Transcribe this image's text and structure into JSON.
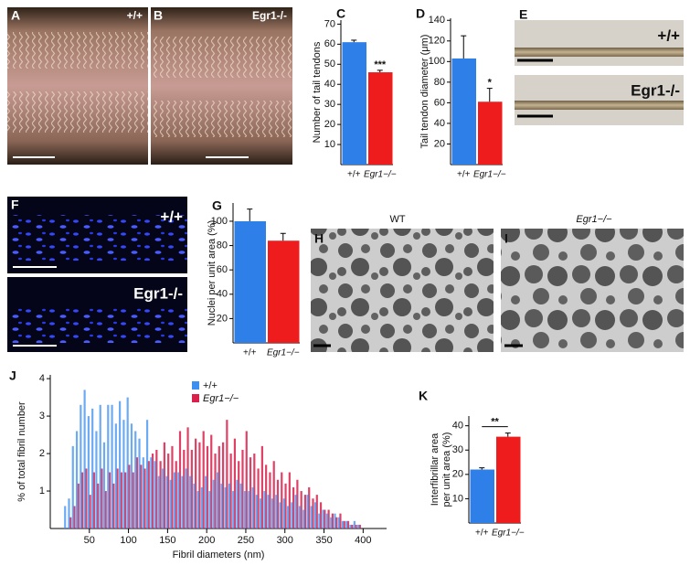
{
  "figure": {
    "images": [
      {
        "panel": "A",
        "label": "+/+"
      },
      {
        "panel": "B",
        "label": "Egr1-/-"
      },
      {
        "panel": "E",
        "labels": [
          "+/+",
          "Egr1-/-"
        ]
      },
      {
        "panel": "F",
        "labels": [
          "+/+",
          "Egr1-/-"
        ]
      },
      {
        "panel": "H",
        "label": "WT"
      },
      {
        "panel": "I",
        "label": "Egr1−/−"
      }
    ]
  },
  "chart_data": [
    {
      "panel": "C",
      "type": "bar",
      "ylabel": "Number of tail tendons",
      "categories": [
        "+/+",
        "Egr1−/−"
      ],
      "values": [
        61,
        46
      ],
      "errors": [
        1,
        1
      ],
      "colors": [
        "#2f7fe8",
        "#ee1c1c"
      ],
      "ylim": [
        0,
        72
      ],
      "yticks": [
        10,
        20,
        30,
        40,
        50,
        60,
        70
      ],
      "annotation": "***"
    },
    {
      "panel": "D",
      "type": "bar",
      "ylabel": "Tail tendon diameter (μm)",
      "categories": [
        "+/+",
        "Egr1−/−"
      ],
      "values": [
        103,
        61
      ],
      "errors": [
        22,
        13
      ],
      "colors": [
        "#2f7fe8",
        "#ee1c1c"
      ],
      "ylim": [
        0,
        142
      ],
      "yticks": [
        20,
        40,
        60,
        80,
        100,
        120,
        140
      ],
      "annotation": "*"
    },
    {
      "panel": "G",
      "type": "bar",
      "ylabel": "Nuclei per unit area (%)",
      "categories": [
        "+/+",
        "Egr1−/−"
      ],
      "values": [
        100,
        84
      ],
      "errors": [
        10,
        6
      ],
      "colors": [
        "#2f7fe8",
        "#ee1c1c"
      ],
      "ylim": [
        0,
        115
      ],
      "yticks": [
        20,
        40,
        60,
        80,
        100
      ]
    },
    {
      "panel": "J",
      "type": "bar",
      "ylabel": "% of total fibril number",
      "xlabel": "Fibril diameters (nm)",
      "x": [
        20,
        25,
        30,
        35,
        40,
        45,
        50,
        55,
        60,
        65,
        70,
        75,
        80,
        85,
        90,
        95,
        100,
        105,
        110,
        115,
        120,
        125,
        130,
        135,
        140,
        145,
        150,
        155,
        160,
        165,
        170,
        175,
        180,
        185,
        190,
        195,
        200,
        205,
        210,
        215,
        220,
        225,
        230,
        235,
        240,
        245,
        250,
        255,
        260,
        265,
        270,
        275,
        280,
        285,
        290,
        295,
        300,
        305,
        310,
        315,
        320,
        325,
        330,
        335,
        340,
        345,
        350,
        355,
        360,
        365,
        370,
        375,
        380,
        385,
        390,
        395
      ],
      "series": [
        {
          "name": "+/+",
          "color": "#3b8ff0",
          "values": [
            0.6,
            0.8,
            2.2,
            2.6,
            3.3,
            3.7,
            3.0,
            3.2,
            2.6,
            3.3,
            2.3,
            3.3,
            3.3,
            2.8,
            3.4,
            2.9,
            3.5,
            2.8,
            2.6,
            2.4,
            1.9,
            2.9,
            1.9,
            1.8,
            1.4,
            1.6,
            1.4,
            1.3,
            1.5,
            1.5,
            1.4,
            1.6,
            1.4,
            1.2,
            1.0,
            1.1,
            1.4,
            1.0,
            1.3,
            1.5,
            1.2,
            1.1,
            1.2,
            1.0,
            1.3,
            1.2,
            1.0,
            1.0,
            1.1,
            0.9,
            0.8,
            1.0,
            0.9,
            0.8,
            0.9,
            0.7,
            0.8,
            0.6,
            0.7,
            0.9,
            0.6,
            0.5,
            0.9,
            0.6,
            0.7,
            0.4,
            0.5,
            0.4,
            0.3,
            0.4,
            0.3,
            0.2,
            0.2,
            0.1,
            0.2,
            0.1
          ]
        },
        {
          "name": "Egr1−/−",
          "color": "#d8204a",
          "values": [
            0,
            0.3,
            0.6,
            1.2,
            1.5,
            1.6,
            0.9,
            1.5,
            1.2,
            1.6,
            1.0,
            1.5,
            1.2,
            1.6,
            1.5,
            1.5,
            1.7,
            1.5,
            1.9,
            1.7,
            1.6,
            1.8,
            2.0,
            2.1,
            1.8,
            2.3,
            2.0,
            2.2,
            1.8,
            2.6,
            2.1,
            2.7,
            2.1,
            2.4,
            2.3,
            2.6,
            2.2,
            2.5,
            2.0,
            2.2,
            2.3,
            2.9,
            2.0,
            2.4,
            1.8,
            2.1,
            2.6,
            1.9,
            2.0,
            1.6,
            2.2,
            1.7,
            1.5,
            1.8,
            1.3,
            1.5,
            1.2,
            1.5,
            1.1,
            1.3,
            1.0,
            0.9,
            1.1,
            0.8,
            0.9,
            0.7,
            0.5,
            0.5,
            0.4,
            0.3,
            0.4,
            0.2,
            0.2,
            0.1,
            0.1,
            0.1
          ]
        }
      ],
      "xlim": [
        0,
        430
      ],
      "xticks": [
        50,
        100,
        150,
        200,
        250,
        300,
        350,
        400
      ],
      "ylim": [
        0,
        4.1
      ],
      "yticks": [
        1,
        2,
        3,
        4
      ]
    },
    {
      "panel": "K",
      "type": "bar",
      "ylabel": [
        "Interfibrillar area",
        "per unit area (%)"
      ],
      "categories": [
        "+/+",
        "Egr1−/−"
      ],
      "values": [
        22,
        35.5
      ],
      "errors": [
        0.7,
        1.5
      ],
      "colors": [
        "#2f7fe8",
        "#ee1c1c"
      ],
      "ylim": [
        0,
        44
      ],
      "yticks": [
        10,
        20,
        30,
        40
      ],
      "annotation": "**"
    }
  ]
}
